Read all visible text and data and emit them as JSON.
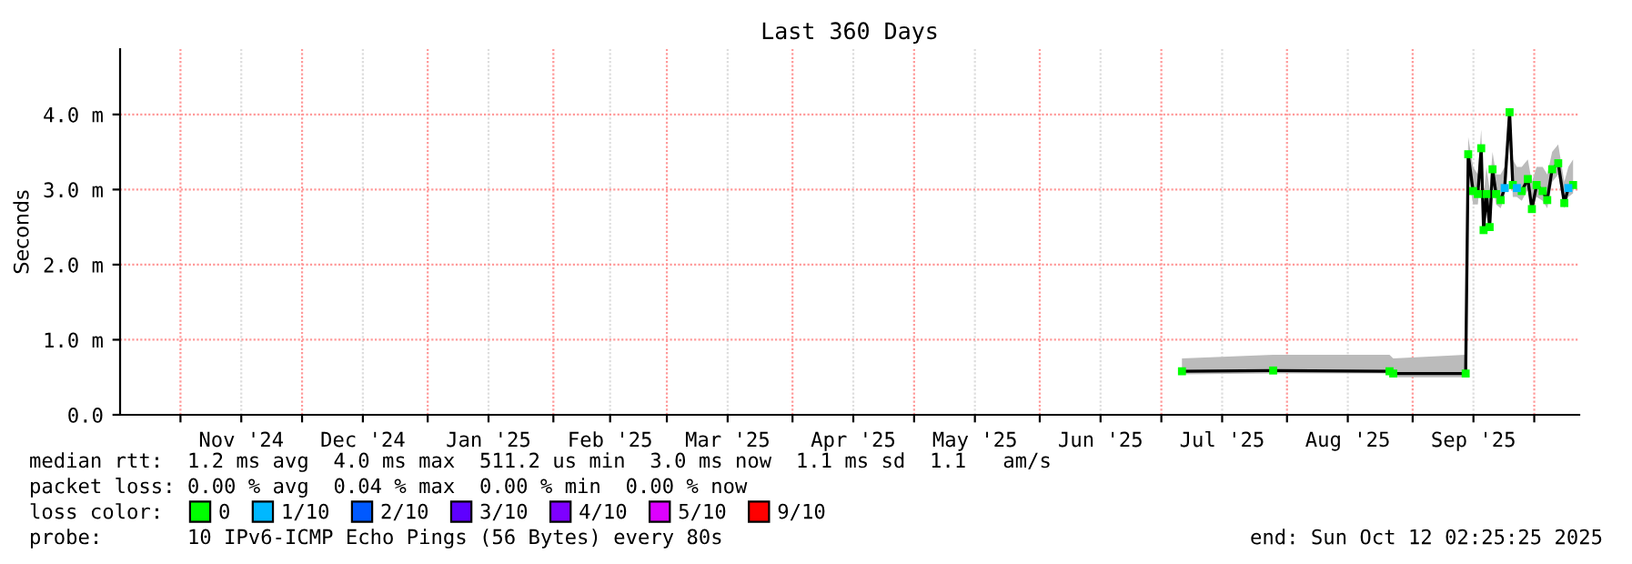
{
  "chart_data": {
    "type": "line",
    "title": "Last 360 Days",
    "ylabel": "Seconds",
    "legend_title": "loss color:",
    "legend": "bottom",
    "grid": true,
    "annotations": [
      "median rtt:  1.2 ms avg  4.0 ms max  511.2 us min  3.0 ms now  1.1 ms sd  1.1   am/s",
      "packet loss: 0.00 % avg  0.04 % max  0.00 % min  0.00 % now",
      "probe:       10 IPv6-ICMP Echo Pings (56 Bytes) every 80s",
      "end: Sun Oct 12 02:25:25 2025"
    ],
    "xlim": [
      "2024-10-17T02:25",
      "2025-10-12T02:25"
    ],
    "xticks": [
      {
        "value": "2024-11-01",
        "label": null
      },
      {
        "value": "2024-11-16",
        "label": "Nov '24"
      },
      {
        "value": "2024-12-01",
        "label": null
      },
      {
        "value": "2024-12-16",
        "label": "Dec '24"
      },
      {
        "value": "2025-01-01",
        "label": null
      },
      {
        "value": "2025-01-16",
        "label": "Jan '25"
      },
      {
        "value": "2025-02-01",
        "label": null
      },
      {
        "value": "2025-02-15",
        "label": "Feb '25"
      },
      {
        "value": "2025-03-01",
        "label": null
      },
      {
        "value": "2025-03-16",
        "label": "Mar '25"
      },
      {
        "value": "2025-04-01",
        "label": null
      },
      {
        "value": "2025-04-16",
        "label": "Apr '25"
      },
      {
        "value": "2025-05-01",
        "label": null
      },
      {
        "value": "2025-05-16",
        "label": "May '25"
      },
      {
        "value": "2025-06-01",
        "label": null
      },
      {
        "value": "2025-06-16",
        "label": "Jun '25"
      },
      {
        "value": "2025-07-01",
        "label": null
      },
      {
        "value": "2025-07-16",
        "label": "Jul '25"
      },
      {
        "value": "2025-08-01",
        "label": null
      },
      {
        "value": "2025-08-16",
        "label": "Aug '25"
      },
      {
        "value": "2025-09-01",
        "label": null
      },
      {
        "value": "2025-09-16",
        "label": "Sep '25"
      },
      {
        "value": "2025-10-01",
        "label": null
      }
    ],
    "ylim": [
      0,
      4.87
    ],
    "yticks": [
      {
        "value": 0,
        "label": "0.0"
      },
      {
        "value": 1,
        "label": "1.0 m"
      },
      {
        "value": 2,
        "label": "2.0 m"
      },
      {
        "value": 3,
        "label": "3.0 m"
      },
      {
        "value": 4,
        "label": "4.0 m"
      }
    ],
    "x": [
      "2025-07-06T02:00",
      "2025-07-28T14:00",
      "2025-08-26T07:00",
      "2025-08-27T05:00",
      "2025-09-14T02:00",
      "2025-09-14T17:00",
      "2025-09-15T22:00",
      "2025-09-17T02:00",
      "2025-09-17T22:00",
      "2025-09-18T12:00",
      "2025-09-19T05:00",
      "2025-09-20T00:00",
      "2025-09-20T17:00",
      "2025-09-21T14:00",
      "2025-09-22T17:00",
      "2025-09-23T17:00",
      "2025-09-24T22:00",
      "2025-09-25T17:00",
      "2025-09-26T17:00",
      "2025-09-27T22:00",
      "2025-09-29T10:00",
      "2025-09-30T10:00",
      "2025-10-01T14:00",
      "2025-10-03T02:00",
      "2025-10-04T05:00",
      "2025-10-05T10:00",
      "2025-10-06T22:00",
      "2025-10-08T10:00",
      "2025-10-09T10:00",
      "2025-10-10T14:00"
    ],
    "series": [
      {
        "color": "#000000",
        "marker": "none",
        "values": [
          0.58,
          0.59,
          0.58,
          0.55,
          0.55,
          3.47,
          2.98,
          2.94,
          3.55,
          2.46,
          2.94,
          2.5,
          3.27,
          2.94,
          2.86,
          3.02,
          4.03,
          3.06,
          3.02,
          2.98,
          3.14,
          2.74,
          3.06,
          2.98,
          2.86,
          3.27,
          3.35,
          2.82,
          3.02,
          3.06
        ],
        "lower": [
          0.54,
          0.55,
          0.55,
          0.5,
          0.5,
          3.2,
          2.8,
          2.8,
          3.3,
          2.4,
          2.8,
          2.45,
          3.1,
          2.8,
          2.75,
          2.9,
          3.8,
          2.9,
          2.9,
          2.85,
          3.0,
          2.7,
          2.9,
          2.85,
          2.75,
          3.1,
          3.2,
          2.75,
          2.9,
          2.95
        ],
        "upper": [
          0.75,
          0.8,
          0.8,
          0.75,
          0.8,
          3.7,
          3.3,
          3.2,
          3.8,
          2.9,
          3.3,
          3.0,
          3.5,
          3.2,
          3.2,
          3.3,
          4.1,
          3.4,
          3.3,
          3.3,
          3.4,
          3.1,
          3.3,
          3.3,
          3.2,
          3.5,
          3.6,
          3.1,
          3.3,
          3.4
        ]
      },
      {
        "type": "scatter",
        "marker": "square",
        "name": "0",
        "color": "#00ff00",
        "values": [
          0.58,
          0.59,
          0.58,
          0.55,
          0.55,
          3.47,
          2.98,
          2.94,
          3.55,
          2.46,
          2.94,
          2.5,
          3.27,
          2.94,
          2.86,
          null,
          4.03,
          3.06,
          null,
          2.98,
          3.14,
          2.74,
          3.06,
          2.98,
          2.86,
          3.27,
          3.35,
          2.82,
          null,
          3.06
        ]
      },
      {
        "type": "scatter",
        "marker": "square",
        "name": "1/10",
        "color": "#00b8ff",
        "values": [
          null,
          null,
          null,
          null,
          null,
          null,
          null,
          null,
          null,
          null,
          null,
          null,
          null,
          null,
          null,
          3.02,
          null,
          null,
          3.02,
          null,
          null,
          null,
          null,
          null,
          null,
          null,
          null,
          null,
          3.02,
          null
        ]
      },
      {
        "type": "scatter",
        "marker": "square",
        "name": "2/10",
        "color": "#0059ff",
        "values": [
          null,
          null,
          null,
          null,
          null,
          null,
          null,
          null,
          null,
          null,
          null,
          null,
          null,
          null,
          null,
          null,
          null,
          null,
          null,
          null,
          null,
          null,
          null,
          null,
          null,
          null,
          null,
          null,
          null,
          null
        ]
      },
      {
        "type": "scatter",
        "marker": "square",
        "name": "3/10",
        "color": "#5e00ff",
        "values": [
          null,
          null,
          null,
          null,
          null,
          null,
          null,
          null,
          null,
          null,
          null,
          null,
          null,
          null,
          null,
          null,
          null,
          null,
          null,
          null,
          null,
          null,
          null,
          null,
          null,
          null,
          null,
          null,
          null,
          null
        ]
      },
      {
        "type": "scatter",
        "marker": "square",
        "name": "4/10",
        "color": "#7e00ff",
        "values": [
          null,
          null,
          null,
          null,
          null,
          null,
          null,
          null,
          null,
          null,
          null,
          null,
          null,
          null,
          null,
          null,
          null,
          null,
          null,
          null,
          null,
          null,
          null,
          null,
          null,
          null,
          null,
          null,
          null,
          null
        ]
      },
      {
        "type": "scatter",
        "marker": "square",
        "name": "5/10",
        "color": "#dd00ff",
        "values": [
          null,
          null,
          null,
          null,
          null,
          null,
          null,
          null,
          null,
          null,
          null,
          null,
          null,
          null,
          null,
          null,
          null,
          null,
          null,
          null,
          null,
          null,
          null,
          null,
          null,
          null,
          null,
          null,
          null,
          null
        ]
      },
      {
        "type": "scatter",
        "marker": "square",
        "name": "9/10",
        "color": "#ff0000",
        "values": [
          null,
          null,
          null,
          null,
          null,
          null,
          null,
          null,
          null,
          null,
          null,
          null,
          null,
          null,
          null,
          null,
          null,
          null,
          null,
          null,
          null,
          null,
          null,
          null,
          null,
          null,
          null,
          null,
          null,
          null
        ]
      }
    ]
  }
}
